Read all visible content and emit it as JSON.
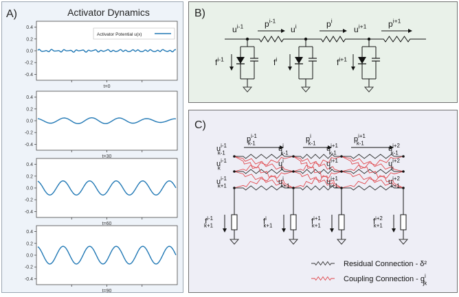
{
  "panelA": {
    "letter": "A)",
    "title": "Activator Dynamics",
    "legend": "Activator Potential u(x)",
    "yticks": [
      "0.4",
      "0.2",
      "0.0",
      "-0.2",
      "-0.4"
    ],
    "plots": [
      {
        "label": "t=0",
        "amplitude": 0.01
      },
      {
        "label": "t=30",
        "amplitude": 0.05
      },
      {
        "label": "t=60",
        "amplitude": 0.12
      },
      {
        "label": "t=90",
        "amplitude": 0.15
      }
    ],
    "colors": {
      "line": "#1f77b4",
      "background": "#eef3f9"
    }
  },
  "panelB": {
    "letter": "B)",
    "nodes": [
      {
        "base": "u",
        "sup": "i-1"
      },
      {
        "base": "u",
        "sup": "i"
      },
      {
        "base": "u",
        "sup": "i+1"
      }
    ],
    "currents": [
      {
        "base": "p",
        "sup": "i-1"
      },
      {
        "base": "p",
        "sup": "i"
      },
      {
        "base": "p",
        "sup": "i+1"
      }
    ],
    "sources": [
      {
        "base": "f",
        "sup": "i-1"
      },
      {
        "base": "f",
        "sup": "i"
      },
      {
        "base": "f",
        "sup": "i+1"
      }
    ],
    "colors": {
      "background": "#e9f1e9"
    }
  },
  "panelC": {
    "letter": "C)",
    "rowKm1": [
      {
        "base": "u",
        "sup": "i-1",
        "sub": "k-1"
      },
      {
        "base": "u",
        "sup": "i",
        "sub": "k-1"
      },
      {
        "base": "u",
        "sup": "i+1",
        "sub": "k-1"
      },
      {
        "base": "u",
        "sup": "i+2",
        "sub": "k-1"
      }
    ],
    "currents": [
      {
        "base": "p",
        "sup": "i-1",
        "sub": "k-1"
      },
      {
        "base": "p",
        "sup": "i",
        "sub": "k-1"
      },
      {
        "base": "p",
        "sup": "i+1",
        "sub": "k-1"
      }
    ],
    "rowK": [
      {
        "base": "u",
        "sup": "i-1",
        "sub": "k"
      },
      {
        "base": "u",
        "sup": "i",
        "sub": "k"
      },
      {
        "base": "u",
        "sup": "i+1",
        "sub": "k"
      },
      {
        "base": "u",
        "sup": "i+2",
        "sub": "k"
      }
    ],
    "rowKp1": [
      {
        "base": "u",
        "sup": "i-1",
        "sub": "k+1"
      },
      {
        "base": "u",
        "sup": "i",
        "sub": "k+1"
      },
      {
        "base": "u",
        "sup": "i+1",
        "sub": "k+1"
      },
      {
        "base": "u",
        "sup": "i+2",
        "sub": "k+1"
      }
    ],
    "sources": [
      {
        "base": "f",
        "sup": "i-1",
        "sub": "k+1"
      },
      {
        "base": "f",
        "sup": "i",
        "sub": "k+1"
      },
      {
        "base": "f",
        "sup": "i+1",
        "sub": "k+1"
      },
      {
        "base": "f",
        "sup": "i+2",
        "sub": "k+1"
      }
    ],
    "legend": {
      "residual": "Residual Connection - δ²",
      "coupling_base": "Coupling Connection - g",
      "coupling_sup": "i",
      "coupling_sub": "jk"
    },
    "colors": {
      "residual": "#333333",
      "coupling": "#e0474c",
      "background": "#eeeef6"
    }
  }
}
